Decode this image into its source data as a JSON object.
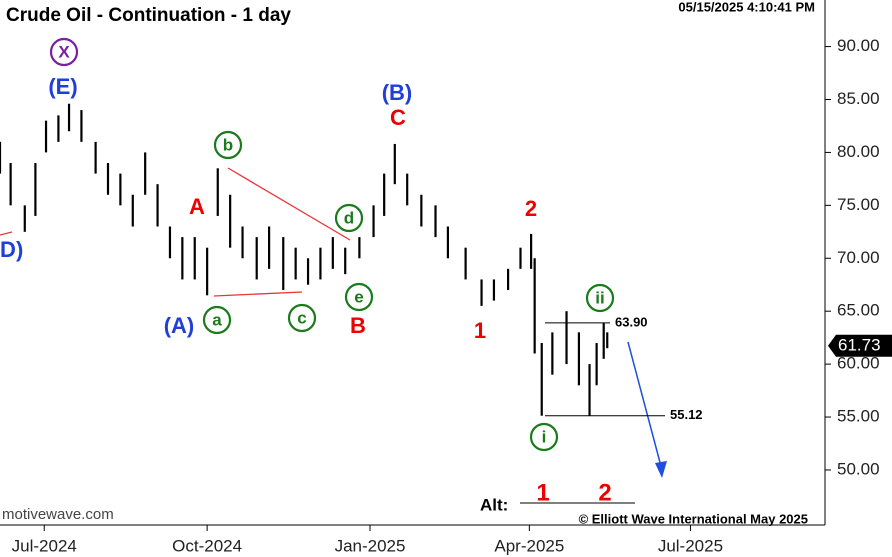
{
  "chart_data": {
    "type": "range-bar",
    "title": "Crude Oil - Continuation - 1 day",
    "timestamp": "05/15/2025 4:10:41 PM",
    "watermark": "motivewave.com",
    "copyright": "© Elliott Wave International May 2025",
    "color": "#000000",
    "x": [
      "2024-06-06",
      "2024-06-12",
      "2024-06-20",
      "2024-06-26",
      "2024-07-02",
      "2024-07-09",
      "2024-07-15",
      "2024-07-22",
      "2024-07-30",
      "2024-08-06",
      "2024-08-13",
      "2024-08-20",
      "2024-08-27",
      "2024-09-03",
      "2024-09-10",
      "2024-09-17",
      "2024-09-24",
      "2024-10-01",
      "2024-10-07",
      "2024-10-14",
      "2024-10-21",
      "2024-10-29",
      "2024-11-05",
      "2024-11-13",
      "2024-11-20",
      "2024-11-27",
      "2024-12-04",
      "2024-12-11",
      "2024-12-18",
      "2024-12-26",
      "2025-01-03",
      "2025-01-09",
      "2025-01-15",
      "2025-01-22",
      "2025-01-30",
      "2025-02-07",
      "2025-02-14",
      "2025-02-24",
      "2025-03-05",
      "2025-03-12",
      "2025-03-20",
      "2025-03-27",
      "2025-04-02",
      "2025-04-04",
      "2025-04-08",
      "2025-04-14",
      "2025-04-22",
      "2025-04-29",
      "2025-05-05",
      "2025-05-09",
      "2025-05-13",
      "2025-05-15"
    ],
    "high": [
      81,
      79,
      75,
      79,
      83,
      83.5,
      84.6,
      84,
      81,
      79,
      78,
      76,
      80,
      77,
      73,
      72,
      72,
      71,
      78.5,
      76,
      73,
      72,
      73,
      72,
      71,
      70,
      71,
      72,
      71,
      72,
      75,
      78,
      80.8,
      78,
      76,
      75,
      73,
      71,
      68,
      68,
      69,
      71,
      72.3,
      70,
      62,
      63,
      65,
      63,
      60,
      62,
      63.9,
      63
    ],
    "low": [
      78,
      75,
      72.5,
      74,
      80,
      81,
      82,
      81,
      78,
      76,
      75,
      73,
      76,
      73,
      70,
      68,
      68,
      66.5,
      74,
      71,
      70,
      68,
      69,
      67,
      68,
      67.5,
      68,
      69,
      68.5,
      70,
      72,
      74,
      77,
      75,
      73,
      72,
      70,
      68,
      65.5,
      66,
      67,
      69,
      69,
      61,
      55.12,
      59,
      60,
      58,
      55.12,
      58,
      60.5,
      61.5
    ],
    "last": 61.73,
    "levels": [
      {
        "value": 63.9,
        "label": "63.90"
      },
      {
        "value": 55.12,
        "label": "55.12"
      }
    ],
    "xlim": [
      "2024-06-06",
      "2025-09-15"
    ],
    "xticks": [
      {
        "value": "2024-07-01",
        "label": "Jul-2024"
      },
      {
        "value": "2024-10-01",
        "label": "Oct-2024"
      },
      {
        "value": "2025-01-01",
        "label": "Jan-2025"
      },
      {
        "value": "2025-04-01",
        "label": "Apr-2025"
      },
      {
        "value": "2025-07-01",
        "label": "Jul-2025"
      }
    ],
    "ylim": [
      44.8,
      94.4
    ],
    "yticks": [
      {
        "value": 50,
        "label": "50.00"
      },
      {
        "value": 55,
        "label": "55.00"
      },
      {
        "value": 60,
        "label": "60.00"
      },
      {
        "value": 65,
        "label": "65.00"
      },
      {
        "value": 70,
        "label": "70.00"
      },
      {
        "value": 75,
        "label": "75.00"
      },
      {
        "value": 80,
        "label": "80.00"
      },
      {
        "value": 85,
        "label": "85.00"
      },
      {
        "value": 90,
        "label": "90.00"
      }
    ],
    "annotations": [
      "X",
      "(E)",
      "(D)",
      "A",
      "(A)",
      "a",
      "b",
      "c",
      "d",
      "e",
      "B",
      "(B)",
      "C",
      "2",
      "1",
      "ii",
      "i"
    ],
    "alt_label": "Alt:",
    "alt_annotations": [
      "1",
      "2"
    ]
  }
}
